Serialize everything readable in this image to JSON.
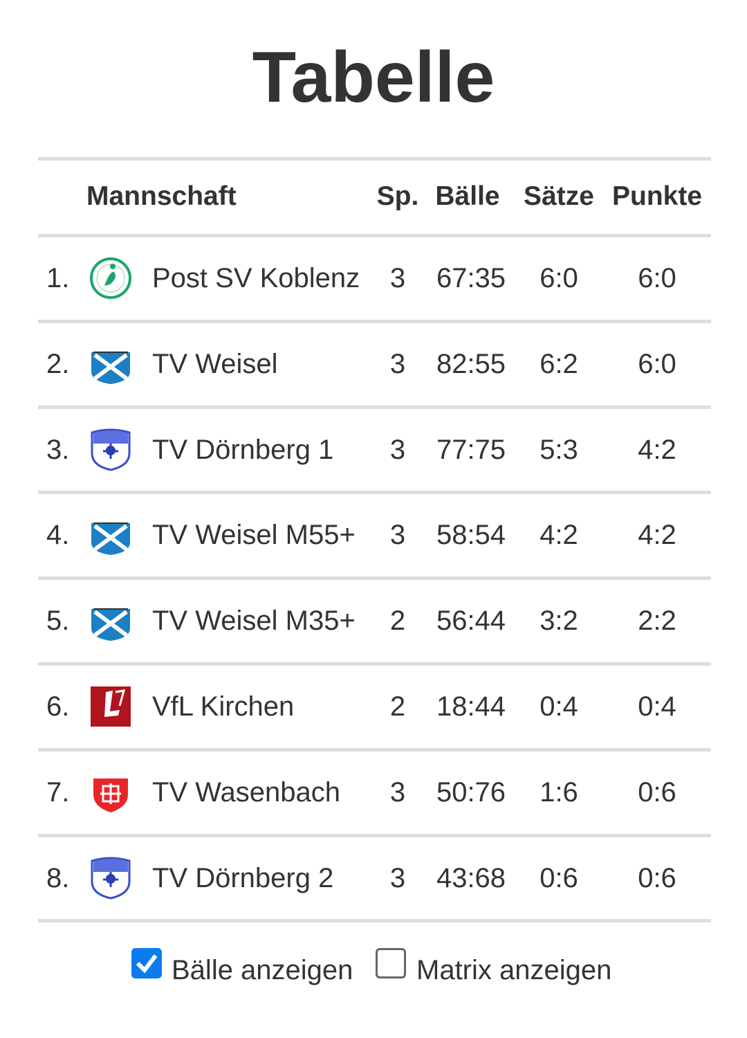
{
  "title": "Tabelle",
  "table": {
    "header": [
      "Mannschaft",
      "Sp.",
      "Bälle",
      "Sätze",
      "Punkte"
    ],
    "rows": [
      [
        "1.",
        "Post SV Koblenz",
        3,
        "67:35",
        "6:0",
        "6:0"
      ],
      [
        "2.",
        "TV Weisel",
        3,
        "82:55",
        "6:2",
        "6:0"
      ],
      [
        "3.",
        "TV Dörnberg 1",
        3,
        "77:75",
        "5:3",
        "4:2"
      ],
      [
        "4.",
        "TV Weisel M55+",
        3,
        "58:54",
        "4:2",
        "4:2"
      ],
      [
        "5.",
        "TV Weisel M35+",
        2,
        "56:44",
        "3:2",
        "2:2"
      ],
      [
        "6.",
        "VfL Kirchen",
        2,
        "18:44",
        "0:4",
        "0:4"
      ],
      [
        "7.",
        "TV Wasenbach",
        3,
        "50:76",
        "1:6",
        "0:6"
      ],
      [
        "8.",
        "TV Dörnberg 2",
        3,
        "43:68",
        "0:6",
        "0:6"
      ]
    ]
  },
  "options": [
    {
      "label": "Bälle anzeigen",
      "checked": true
    },
    {
      "label": "Matrix anzeigen",
      "checked": false
    }
  ]
}
